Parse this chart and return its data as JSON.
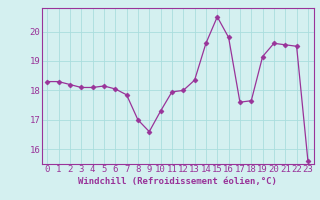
{
  "x": [
    0,
    1,
    2,
    3,
    4,
    5,
    6,
    7,
    8,
    9,
    10,
    11,
    12,
    13,
    14,
    15,
    16,
    17,
    18,
    19,
    20,
    21,
    22,
    23
  ],
  "y": [
    18.3,
    18.3,
    18.2,
    18.1,
    18.1,
    18.15,
    18.05,
    17.85,
    17.0,
    16.6,
    17.3,
    17.95,
    18.0,
    18.35,
    19.6,
    20.5,
    19.8,
    17.6,
    17.65,
    19.15,
    19.6,
    19.55,
    19.5,
    15.6
  ],
  "line_color": "#993399",
  "marker": "D",
  "marker_size": 2.5,
  "bg_color": "#d4f0f0",
  "grid_color": "#aadddd",
  "xlabel": "Windchill (Refroidissement éolien,°C)",
  "xlabel_fontsize": 6.5,
  "tick_label_fontsize": 6.5,
  "ylim": [
    15.5,
    20.8
  ],
  "yticks": [
    16,
    17,
    18,
    19,
    20
  ],
  "xticks": [
    0,
    1,
    2,
    3,
    4,
    5,
    6,
    7,
    8,
    9,
    10,
    11,
    12,
    13,
    14,
    15,
    16,
    17,
    18,
    19,
    20,
    21,
    22,
    23
  ]
}
